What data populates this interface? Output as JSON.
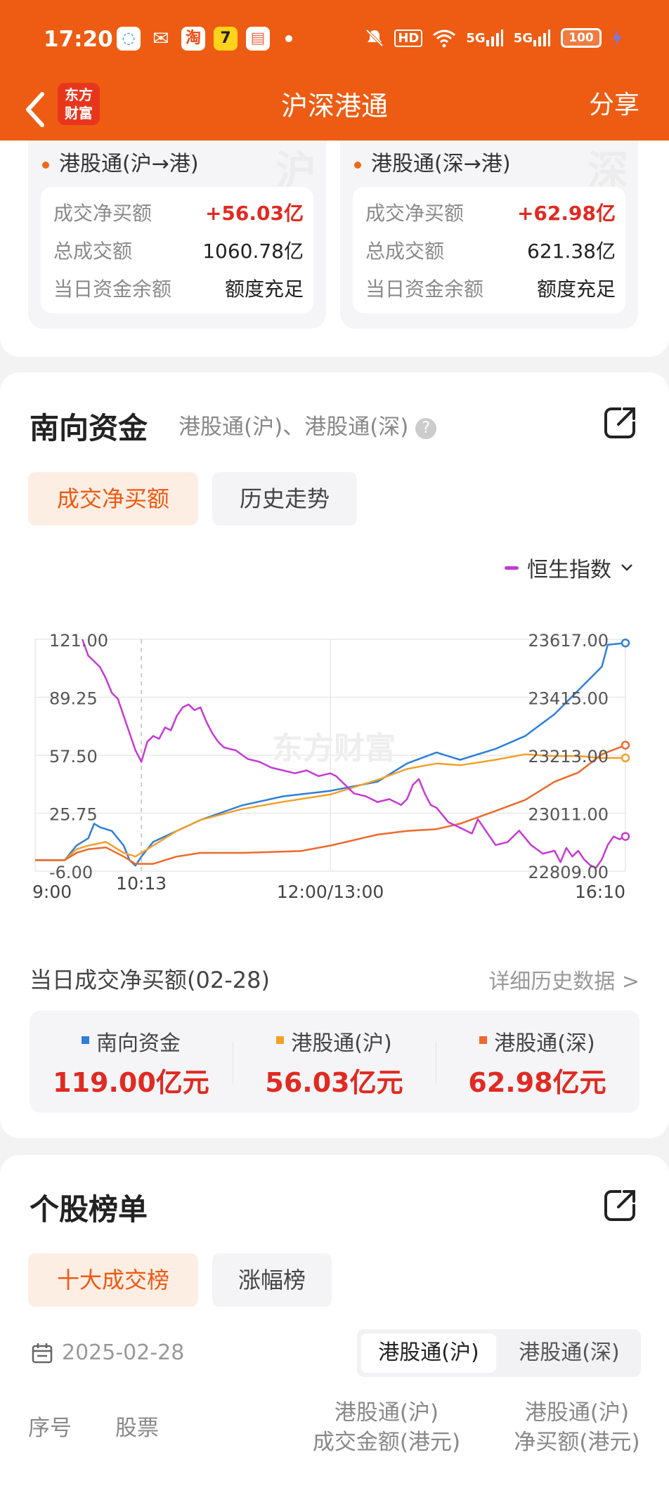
{
  "status_bar": {
    "time": "17:20",
    "app_icons": [
      "message-icon",
      "wechat-icon",
      "taobao-icon",
      "app7-icon",
      "reader-icon"
    ],
    "taobao_glyph": "淘",
    "app7_glyph": "7",
    "battery": "100",
    "hd": "HD",
    "signal1": "5G",
    "signal2": "5G"
  },
  "header": {
    "title": "沪深港通",
    "share": "分享",
    "logo_line1": "东方",
    "logo_line2": "财富"
  },
  "connect": [
    {
      "title": "港股通(沪→港)",
      "watermark": "沪",
      "rows": [
        {
          "label": "成交净买额",
          "value": "+56.03亿"
        },
        {
          "label": "总成交额",
          "value": "1060.78亿"
        },
        {
          "label": "当日资金余额",
          "value": "额度充足"
        }
      ]
    },
    {
      "title": "港股通(深→港)",
      "watermark": "深",
      "rows": [
        {
          "label": "成交净买额",
          "value": "+62.98亿"
        },
        {
          "label": "总成交额",
          "value": "621.38亿"
        },
        {
          "label": "当日资金余额",
          "value": "额度充足"
        }
      ]
    }
  ],
  "south": {
    "title": "南向资金",
    "subtitle": "港股通(沪)、港股通(深)",
    "help": "?",
    "tabs": [
      "成交净买额",
      "历史走势"
    ],
    "legend_selector": "恒生指数",
    "watermark": "东方财富",
    "daily_label": "当日成交净买额(02-28)",
    "detail_link": "详细历史数据 >",
    "summary": [
      {
        "label": "南向资金",
        "value": "119.00亿元",
        "color": "#2f7fd8"
      },
      {
        "label": "港股通(沪)",
        "value": "56.03亿元",
        "color": "#f2a02a"
      },
      {
        "label": "港股通(深)",
        "value": "62.98亿元",
        "color": "#ec6a2c"
      }
    ]
  },
  "chart_data": {
    "type": "line",
    "x_ticks": [
      "9:00",
      "10:13",
      "12:00/13:00",
      "16:10"
    ],
    "y_left_ticks": [
      "121.00",
      "89.25",
      "57.50",
      "25.75",
      "-6.00"
    ],
    "y_left_range": [
      -6,
      121
    ],
    "y_right_ticks": [
      "23617.00",
      "23415.00",
      "23213.00",
      "23011.00",
      "22809.00"
    ],
    "y_right_range": [
      22809,
      23617
    ],
    "grid": true,
    "series": [
      {
        "name": "南向资金",
        "axis": "left",
        "color": "#2f7fd8",
        "points": [
          [
            0,
            0
          ],
          [
            5,
            0
          ],
          [
            7,
            8
          ],
          [
            9,
            12
          ],
          [
            10,
            20
          ],
          [
            11,
            18
          ],
          [
            13,
            16
          ],
          [
            15,
            8
          ],
          [
            16,
            0
          ],
          [
            17,
            -3
          ],
          [
            18,
            2
          ],
          [
            20,
            10
          ],
          [
            24,
            16
          ],
          [
            28,
            22
          ],
          [
            35,
            30
          ],
          [
            42,
            35
          ],
          [
            50,
            38
          ],
          [
            58,
            43
          ],
          [
            63,
            53
          ],
          [
            68,
            59
          ],
          [
            72,
            55
          ],
          [
            78,
            61
          ],
          [
            83,
            68
          ],
          [
            88,
            80
          ],
          [
            92,
            93
          ],
          [
            96,
            106
          ],
          [
            97,
            118
          ],
          [
            100,
            119
          ]
        ]
      },
      {
        "name": "港股通(沪)",
        "axis": "left",
        "color": "#f2a02a",
        "points": [
          [
            0,
            0
          ],
          [
            5,
            0
          ],
          [
            7,
            6
          ],
          [
            9,
            8
          ],
          [
            12,
            10
          ],
          [
            15,
            4
          ],
          [
            17,
            2
          ],
          [
            20,
            8
          ],
          [
            24,
            16
          ],
          [
            28,
            22
          ],
          [
            35,
            28
          ],
          [
            42,
            32
          ],
          [
            50,
            36
          ],
          [
            58,
            44
          ],
          [
            63,
            50
          ],
          [
            68,
            53
          ],
          [
            72,
            52
          ],
          [
            78,
            55
          ],
          [
            83,
            58
          ],
          [
            88,
            57
          ],
          [
            92,
            57
          ],
          [
            96,
            56
          ],
          [
            100,
            56
          ]
        ]
      },
      {
        "name": "港股通(深)",
        "axis": "left",
        "color": "#ec6a2c",
        "points": [
          [
            0,
            0
          ],
          [
            5,
            0
          ],
          [
            7,
            4
          ],
          [
            9,
            6
          ],
          [
            12,
            7
          ],
          [
            15,
            2
          ],
          [
            17,
            -2
          ],
          [
            20,
            -2
          ],
          [
            24,
            2
          ],
          [
            28,
            4
          ],
          [
            35,
            4
          ],
          [
            45,
            5
          ],
          [
            50,
            8
          ],
          [
            58,
            14
          ],
          [
            63,
            16
          ],
          [
            68,
            17
          ],
          [
            72,
            20
          ],
          [
            78,
            27
          ],
          [
            83,
            33
          ],
          [
            88,
            43
          ],
          [
            92,
            48
          ],
          [
            96,
            58
          ],
          [
            100,
            63
          ]
        ]
      },
      {
        "name": "恒生指数",
        "axis": "right",
        "color": "#c63ad4",
        "points": [
          [
            8,
            23617
          ],
          [
            9,
            23560
          ],
          [
            10,
            23540
          ],
          [
            11,
            23520
          ],
          [
            12,
            23480
          ],
          [
            13,
            23430
          ],
          [
            14,
            23410
          ],
          [
            15,
            23350
          ],
          [
            16,
            23290
          ],
          [
            17,
            23230
          ],
          [
            18,
            23190
          ],
          [
            19,
            23260
          ],
          [
            20,
            23280
          ],
          [
            21,
            23270
          ],
          [
            22,
            23310
          ],
          [
            23,
            23300
          ],
          [
            24,
            23350
          ],
          [
            25,
            23380
          ],
          [
            26,
            23390
          ],
          [
            27,
            23370
          ],
          [
            28,
            23380
          ],
          [
            29,
            23330
          ],
          [
            30,
            23290
          ],
          [
            31,
            23260
          ],
          [
            32,
            23240
          ],
          [
            34,
            23230
          ],
          [
            36,
            23200
          ],
          [
            38,
            23190
          ],
          [
            40,
            23170
          ],
          [
            42,
            23160
          ],
          [
            44,
            23150
          ],
          [
            46,
            23160
          ],
          [
            48,
            23140
          ],
          [
            50,
            23150
          ],
          [
            51,
            23140
          ],
          [
            52,
            23120
          ],
          [
            53,
            23100
          ],
          [
            54,
            23080
          ],
          [
            56,
            23070
          ],
          [
            58,
            23050
          ],
          [
            60,
            23060
          ],
          [
            62,
            23040
          ],
          [
            63,
            23060
          ],
          [
            64,
            23110
          ],
          [
            65,
            23130
          ],
          [
            66,
            23080
          ],
          [
            67,
            23040
          ],
          [
            68,
            23030
          ],
          [
            70,
            22980
          ],
          [
            72,
            22960
          ],
          [
            74,
            22940
          ],
          [
            75,
            22990
          ],
          [
            76,
            22960
          ],
          [
            78,
            22900
          ],
          [
            80,
            22910
          ],
          [
            82,
            22950
          ],
          [
            84,
            22900
          ],
          [
            86,
            22870
          ],
          [
            88,
            22880
          ],
          [
            89,
            22840
          ],
          [
            90,
            22890
          ],
          [
            91,
            22860
          ],
          [
            92,
            22880
          ],
          [
            93,
            22850
          ],
          [
            94,
            22830
          ],
          [
            95,
            22820
          ],
          [
            96,
            22850
          ],
          [
            97,
            22900
          ],
          [
            98,
            22930
          ],
          [
            99,
            22920
          ],
          [
            100,
            22930
          ]
        ]
      }
    ]
  },
  "stocks": {
    "title": "个股榜单",
    "tabs": [
      "十大成交榜",
      "涨幅榜"
    ],
    "date": "2025-02-28",
    "segments": [
      "港股通(沪)",
      "港股通(深)"
    ],
    "table_headers": [
      "序号",
      "股票",
      "港股通(沪)\n成交金额(港元)",
      "港股通(沪)\n净买额(港元)"
    ]
  }
}
